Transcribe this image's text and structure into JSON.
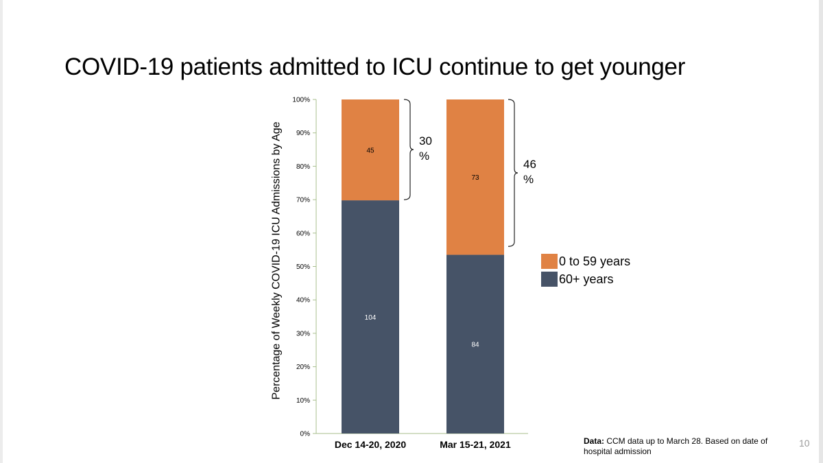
{
  "slide": {
    "title": "COVID-19 patients admitted to ICU continue to get younger",
    "page_number": "10",
    "footnote_label": "Data:",
    "footnote_text": " CCM data up to March 28. Based on date of hospital admission"
  },
  "chart_data": {
    "type": "bar",
    "stacked": true,
    "title": "",
    "xlabel": "",
    "ylabel": "Percentage of Weekly COVID-19 ICU Admissions by Age",
    "ylim": [
      0,
      100
    ],
    "yticks": [
      0,
      10,
      20,
      30,
      40,
      50,
      60,
      70,
      80,
      90,
      100
    ],
    "ytick_labels": [
      "0%",
      "10%",
      "20%",
      "30%",
      "40%",
      "50%",
      "60%",
      "70%",
      "80%",
      "90%",
      "100%"
    ],
    "categories": [
      "Dec 14-20, 2020",
      "Mar 15-21, 2021"
    ],
    "series": [
      {
        "name": "60+ years",
        "color": "#465367",
        "percent": [
          69.8,
          53.5
        ],
        "labels": [
          "104",
          "84"
        ]
      },
      {
        "name": "0 to 59 years",
        "color": "#e08244",
        "percent": [
          30.2,
          46.5
        ],
        "labels": [
          "45",
          "73"
        ]
      }
    ],
    "legend": [
      {
        "name": "0 to 59 years",
        "color": "#e08244"
      },
      {
        "name": "60+ years",
        "color": "#465367"
      }
    ],
    "legend_position": "right",
    "annotations": [
      {
        "category_index": 0,
        "from": 70,
        "to": 100,
        "text": "30 %"
      },
      {
        "category_index": 1,
        "from": 56,
        "to": 100,
        "text": "46 %"
      }
    ]
  }
}
